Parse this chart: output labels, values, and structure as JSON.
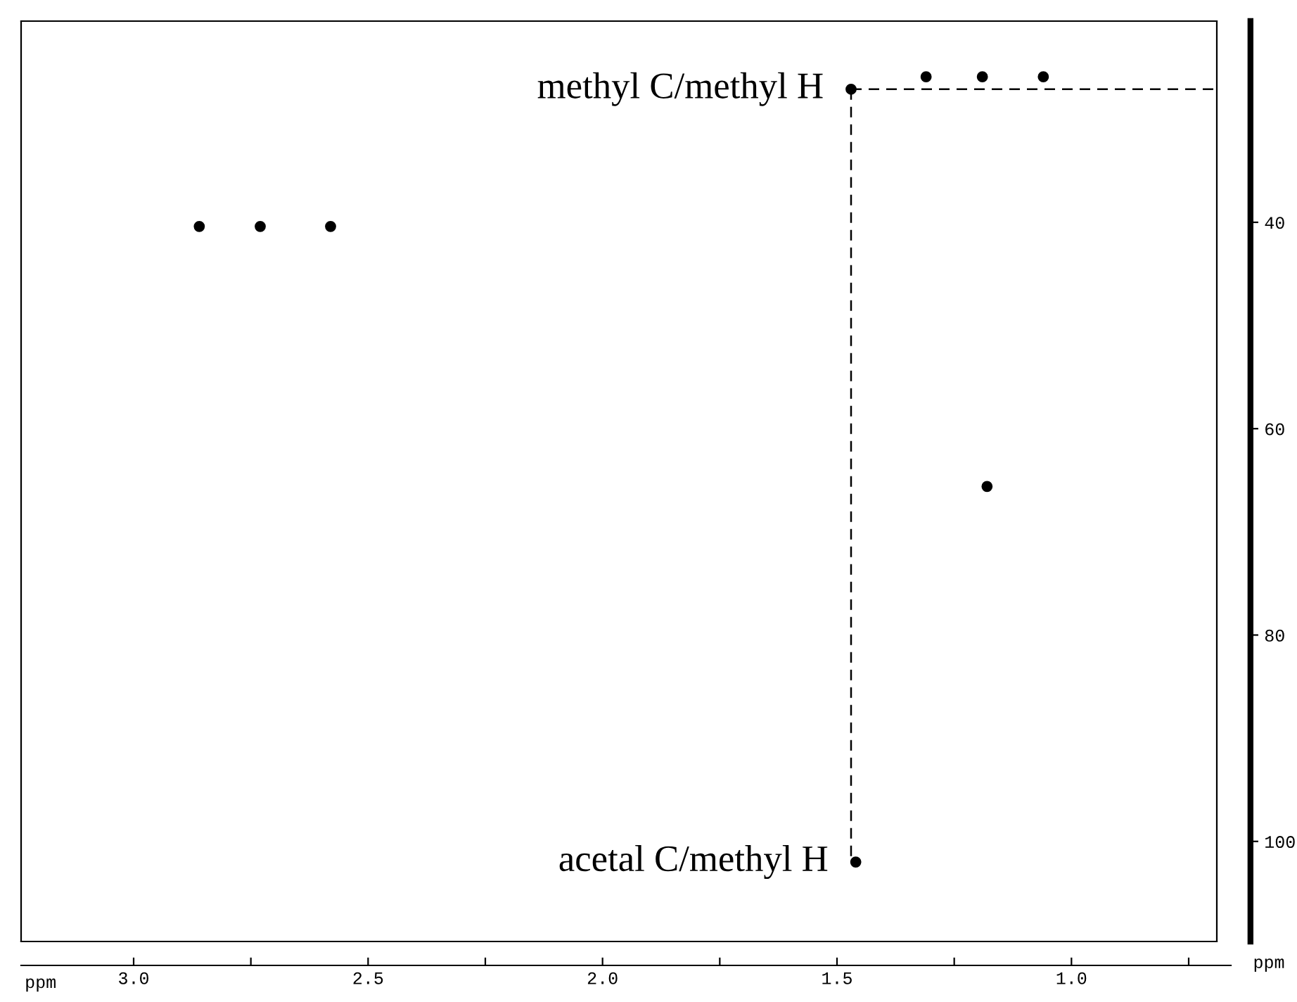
{
  "chart_data": {
    "type": "scatter",
    "xlabel": "ppm",
    "y2label": "ppm",
    "series": [
      {
        "type": "scatter",
        "color": "#000000",
        "marker": "circle",
        "x": [
          2.86,
          2.73,
          2.58,
          1.47,
          1.31,
          1.19,
          1.06,
          1.18,
          1.46
        ],
        "values": [
          40.4,
          40.4,
          40.4,
          27.1,
          25.9,
          25.9,
          25.9,
          65.6,
          102
        ]
      },
      {
        "type": "line",
        "color": "#000000",
        "line_style": "dashed",
        "marker": "none",
        "x": [
          1.47,
          1.47
        ],
        "values": [
          27.1,
          102
        ]
      },
      {
        "type": "line",
        "color": "#000000",
        "line_style": "dashed",
        "marker": "none",
        "x": [
          1.47,
          0.69
        ],
        "values": [
          27.1,
          27.1
        ]
      }
    ],
    "annotations": [
      {
        "text": "methyl C/methyl H",
        "x": 1.47,
        "y": 27.1
      },
      {
        "text": "acetal C/methyl H",
        "x": 1.46,
        "y": 102
      }
    ],
    "xlim": [
      3.24,
      0.69
    ],
    "xticks": [
      {
        "value": 3,
        "label": "3.0"
      },
      {
        "value": 2.75,
        "label": null
      },
      {
        "value": 2.5,
        "label": "2.5"
      },
      {
        "value": 2.25,
        "label": null
      },
      {
        "value": 2,
        "label": "2.0"
      },
      {
        "value": 1.75,
        "label": null
      },
      {
        "value": 1.5,
        "label": "1.5"
      },
      {
        "value": 1.25,
        "label": null
      },
      {
        "value": 1,
        "label": "1.0"
      },
      {
        "value": 0.75,
        "label": null
      }
    ],
    "ylim": [
      109.7,
      20.5
    ],
    "yticks": [
      40,
      60,
      80,
      100
    ],
    "grid": false,
    "legend": false
  }
}
